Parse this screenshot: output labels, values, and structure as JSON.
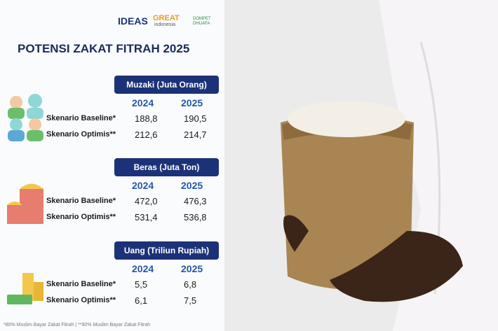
{
  "logos": {
    "ideas": "IDEAS",
    "great": "GREAT",
    "great_sub": "indonesia",
    "dompet": "DOMPET DHUAFA"
  },
  "title": "POTENSI ZAKAT FITRAH 2025",
  "sections": [
    {
      "header": "Muzaki (Juta Orang)",
      "years": [
        "2024",
        "2025"
      ],
      "rows": [
        {
          "label": "Skenario Baseline*",
          "values": [
            "188,8",
            "190,5"
          ]
        },
        {
          "label": "Skenario Optimis**",
          "values": [
            "212,6",
            "214,7"
          ]
        }
      ]
    },
    {
      "header": "Beras (Juta Ton)",
      "years": [
        "2024",
        "2025"
      ],
      "rows": [
        {
          "label": "Skenario Baseline*",
          "values": [
            "472,0",
            "476,3"
          ]
        },
        {
          "label": "Skenario Optimis**",
          "values": [
            "531,4",
            "536,8"
          ]
        }
      ]
    },
    {
      "header": "Uang (Triliun Rupiah)",
      "years": [
        "2024",
        "2025"
      ],
      "rows": [
        {
          "label": "Skenario Baseline*",
          "values": [
            "5,5",
            "6,8"
          ]
        },
        {
          "label": "Skenario Optimis**",
          "values": [
            "6,1",
            "7,5"
          ]
        }
      ]
    }
  ],
  "footnote": "*80% Muslim Bayar Zakat Fitrah | **90% Muslim Bayar Zakat Fitrah"
}
